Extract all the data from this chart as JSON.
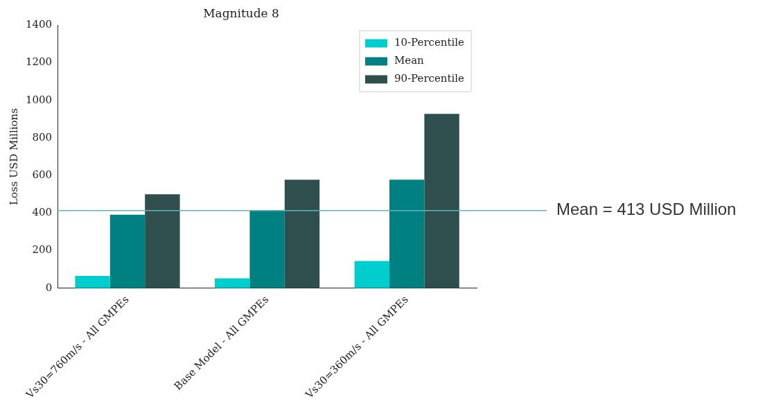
{
  "chart_data": {
    "type": "bar",
    "title": "Magnitude 8",
    "ylabel": "Loss USD Millions",
    "categories": [
      "Vs30=760m/s - All GMPEs",
      "Base Model - All GMPEs",
      "Vs30=360m/s - All GMPEs"
    ],
    "series": [
      {
        "name": "10-Percentile",
        "color": "#00cdcd",
        "values": [
          65,
          52,
          145
        ]
      },
      {
        "name": "Mean",
        "color": "#008080",
        "values": [
          391,
          415,
          577
        ]
      },
      {
        "name": "90-Percentile",
        "color": "#2f4f4f",
        "values": [
          500,
          577,
          928
        ]
      }
    ],
    "ylim": [
      0,
      1400
    ],
    "yticks": [
      0,
      200,
      400,
      600,
      800,
      1000,
      1200,
      1400
    ],
    "grid": false,
    "legend": "top right",
    "ref_lines": [
      {
        "axis": "y",
        "value": 413,
        "label": "Mean = 413 USD Million",
        "color": "#5fb3b8"
      }
    ]
  }
}
